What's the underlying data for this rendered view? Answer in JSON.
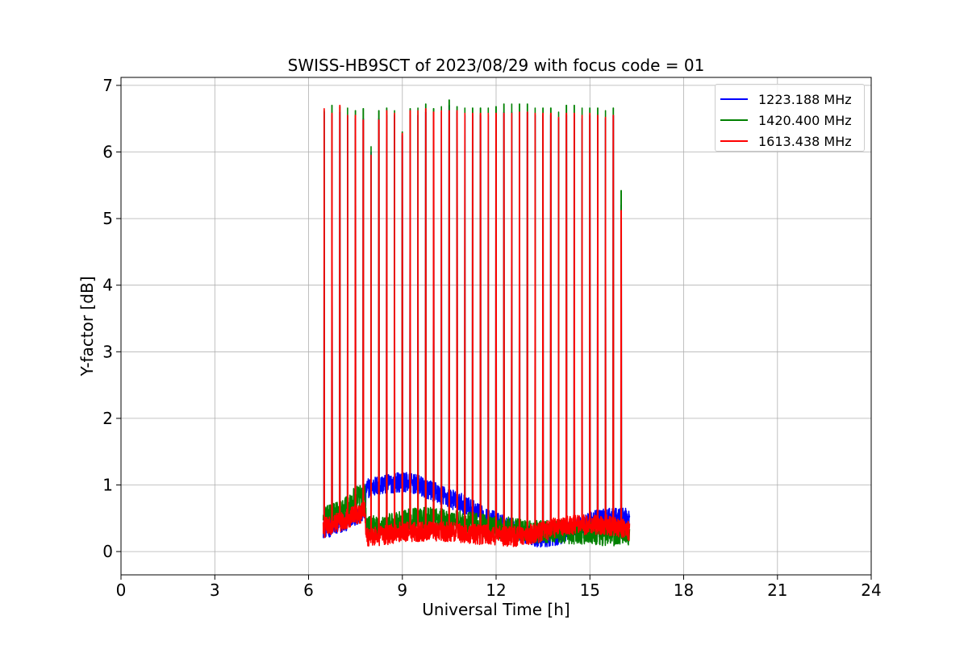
{
  "chart_data": {
    "type": "line",
    "title": "SWISS-HB9SCT of 2023/08/29 with focus code = 01",
    "xlabel": "Universal Time [h]",
    "ylabel": "Y-factor [dB]",
    "xlim": [
      0,
      24
    ],
    "ylim": [
      -0.35,
      7.12
    ],
    "xticks": [
      0,
      3,
      6,
      9,
      12,
      15,
      18,
      21,
      24
    ],
    "yticks": [
      0,
      1,
      2,
      3,
      4,
      5,
      6,
      7
    ],
    "grid": true,
    "legend_position": "top-right",
    "data_start_h": 6.47,
    "data_end_h": 16.27,
    "calibration_spikes_h": [
      6.5,
      6.75,
      7.0,
      7.25,
      7.5,
      7.75,
      8.0,
      8.25,
      8.5,
      8.75,
      9.0,
      9.25,
      9.5,
      9.75,
      10.0,
      10.25,
      10.5,
      10.75,
      11.0,
      11.25,
      11.5,
      11.75,
      12.0,
      12.25,
      12.5,
      12.75,
      13.0,
      13.25,
      13.5,
      13.75,
      14.0,
      14.25,
      14.5,
      14.75,
      15.0,
      15.25,
      15.5,
      15.75,
      16.0
    ],
    "series": [
      {
        "name": "1223.188 MHz",
        "color": "#0000ff",
        "baseline": {
          "x": [
            6.47,
            7.0,
            7.5,
            7.8,
            7.85,
            8.3,
            9.0,
            9.5,
            10.0,
            10.5,
            11.0,
            11.5,
            12.0,
            12.5,
            13.0,
            13.5,
            14.0,
            14.5,
            15.0,
            15.5,
            16.0,
            16.27
          ],
          "y": [
            0.35,
            0.4,
            0.55,
            0.6,
            0.95,
            1.0,
            1.05,
            1.0,
            0.9,
            0.8,
            0.7,
            0.55,
            0.45,
            0.35,
            0.25,
            0.2,
            0.25,
            0.35,
            0.45,
            0.5,
            0.5,
            0.5
          ]
        },
        "noise": 0.15,
        "spike_peaks": [
          6.6,
          6.55,
          6.6,
          6.55,
          6.5,
          6.5,
          6.0,
          6.5,
          6.55,
          6.55,
          6.25,
          6.55,
          6.55,
          6.6,
          6.6,
          6.6,
          6.7,
          6.6,
          6.55,
          6.55,
          6.55,
          6.55,
          6.55,
          6.6,
          6.6,
          6.6,
          6.6,
          6.55,
          6.55,
          6.55,
          6.5,
          6.55,
          6.55,
          6.5,
          6.55,
          6.55,
          6.5,
          6.55,
          5.2
        ]
      },
      {
        "name": "1420.400 MHz",
        "color": "#008000",
        "baseline": {
          "x": [
            6.47,
            7.0,
            7.5,
            7.8,
            7.85,
            8.5,
            9.0,
            9.5,
            10.0,
            10.5,
            11.0,
            11.5,
            12.0,
            12.5,
            13.0,
            13.5,
            14.0,
            14.5,
            15.0,
            15.5,
            16.0,
            16.27
          ],
          "y": [
            0.5,
            0.6,
            0.8,
            0.85,
            0.35,
            0.4,
            0.45,
            0.5,
            0.5,
            0.45,
            0.45,
            0.4,
            0.35,
            0.35,
            0.3,
            0.3,
            0.3,
            0.28,
            0.28,
            0.25,
            0.25,
            0.25
          ]
        },
        "noise": 0.17,
        "spike_peaks": [
          6.62,
          6.7,
          6.68,
          6.66,
          6.62,
          6.65,
          6.08,
          6.62,
          6.66,
          6.62,
          6.3,
          6.65,
          6.66,
          6.72,
          6.65,
          6.68,
          6.78,
          6.68,
          6.66,
          6.66,
          6.66,
          6.66,
          6.68,
          6.72,
          6.72,
          6.72,
          6.72,
          6.66,
          6.66,
          6.66,
          6.6,
          6.7,
          6.7,
          6.66,
          6.66,
          6.66,
          6.62,
          6.66,
          5.42
        ]
      },
      {
        "name": "1613.438 MHz",
        "color": "#ff0000",
        "baseline": {
          "x": [
            6.47,
            7.0,
            7.5,
            7.8,
            7.85,
            8.5,
            9.0,
            9.5,
            10.0,
            10.5,
            11.0,
            11.5,
            12.0,
            12.5,
            13.0,
            13.5,
            14.0,
            14.5,
            15.0,
            15.5,
            16.0,
            16.27
          ],
          "y": [
            0.35,
            0.45,
            0.55,
            0.6,
            0.2,
            0.25,
            0.3,
            0.3,
            0.3,
            0.3,
            0.28,
            0.25,
            0.25,
            0.22,
            0.25,
            0.3,
            0.38,
            0.4,
            0.4,
            0.4,
            0.35,
            0.3
          ]
        },
        "noise": 0.15,
        "spike_peaks": [
          6.65,
          6.58,
          6.7,
          6.55,
          6.55,
          6.48,
          5.95,
          6.48,
          6.62,
          6.58,
          6.28,
          6.62,
          6.62,
          6.65,
          6.6,
          6.62,
          6.62,
          6.62,
          6.58,
          6.58,
          6.58,
          6.58,
          6.58,
          6.58,
          6.58,
          6.6,
          6.6,
          6.58,
          6.58,
          6.58,
          6.52,
          6.58,
          6.58,
          6.55,
          6.58,
          6.55,
          6.52,
          6.55,
          5.12
        ]
      }
    ]
  }
}
